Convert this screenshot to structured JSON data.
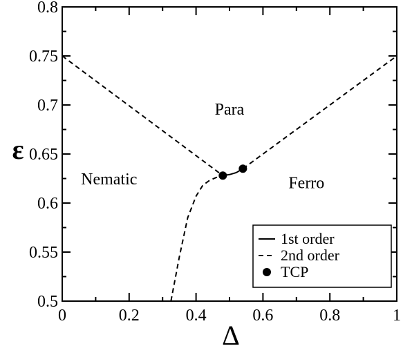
{
  "chart_data": {
    "type": "line",
    "xlabel": "Δ",
    "ylabel": "ε",
    "xlim": [
      0,
      1
    ],
    "ylim": [
      0.5,
      0.8
    ],
    "x_ticks": [
      0,
      0.2,
      0.4,
      0.6,
      0.8,
      1
    ],
    "x_tick_labels": [
      "0",
      "0.2",
      "0.4",
      "0.6",
      "0.8",
      "1"
    ],
    "y_ticks": [
      0.5,
      0.55,
      0.6,
      0.65,
      0.7,
      0.75,
      0.8
    ],
    "y_tick_labels": [
      "0.5",
      "0.55",
      "0.6",
      "0.65",
      "0.7",
      "0.75",
      "0.8"
    ],
    "grid": false,
    "legend_position": "bottom-right",
    "series": [
      {
        "name": "1st order",
        "style": "solid",
        "x": [
          0.48,
          0.5,
          0.52,
          0.54
        ],
        "y": [
          0.628,
          0.629,
          0.631,
          0.635
        ]
      },
      {
        "name": "2nd order",
        "style": "dashed",
        "segments": [
          {
            "x": [
              0,
              0.48
            ],
            "y": [
              0.75,
              0.628
            ]
          },
          {
            "x": [
              0.54,
              1
            ],
            "y": [
              0.635,
              0.75
            ]
          },
          {
            "x": [
              0.325,
              0.35,
              0.375,
              0.4,
              0.42,
              0.44,
              0.46,
              0.48
            ],
            "y": [
              0.5,
              0.545,
              0.585,
              0.607,
              0.618,
              0.623,
              0.626,
              0.628
            ]
          }
        ]
      },
      {
        "name": "TCP",
        "style": "marker",
        "x": [
          0.48,
          0.54
        ],
        "y": [
          0.628,
          0.635
        ]
      }
    ],
    "annotations": [
      {
        "text": "Para",
        "x": 0.5,
        "y": 0.69
      },
      {
        "text": "Nematic",
        "x": 0.14,
        "y": 0.619
      },
      {
        "text": "Ferro",
        "x": 0.73,
        "y": 0.615
      }
    ]
  }
}
